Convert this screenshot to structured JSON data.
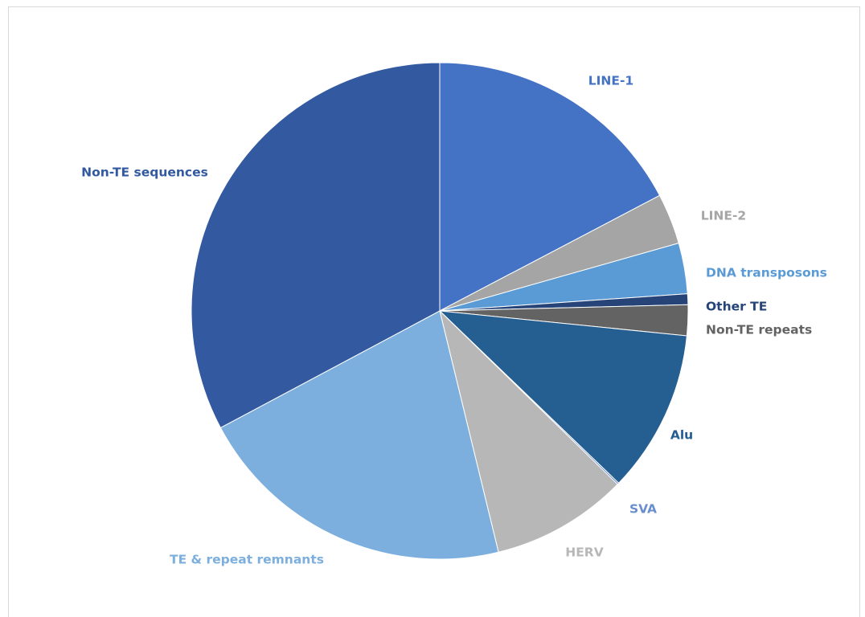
{
  "chart_data": {
    "type": "pie",
    "title": "",
    "legend": "none",
    "slices": [
      {
        "label": "LINE-1",
        "value": 17.3,
        "color": "#4472C4",
        "label_color": "#4472C4"
      },
      {
        "label": "LINE-2",
        "value": 3.3,
        "color": "#A5A5A5",
        "label_color": "#A5A5A5"
      },
      {
        "label": "DNA transposons",
        "value": 3.3,
        "color": "#5B9BD5",
        "label_color": "#5B9BD5"
      },
      {
        "label": "Other TE",
        "value": 0.7,
        "color": "#264478",
        "label_color": "#264478"
      },
      {
        "label": "Non-TE repeats",
        "value": 2.0,
        "color": "#636363",
        "label_color": "#636363"
      },
      {
        "label": "Alu",
        "value": 10.6,
        "color": "#255E91",
        "label_color": "#255E91"
      },
      {
        "label": "SVA",
        "value": 0.1,
        "color": "#4472C4",
        "label_color": "#698ED0"
      },
      {
        "label": "HERV",
        "value": 8.9,
        "color": "#B7B7B7",
        "label_color": "#B7B7B7"
      },
      {
        "label": "TE & repeat remnants",
        "value": 21.0,
        "color": "#7CAFDD",
        "label_color": "#7CAFDD"
      },
      {
        "label": "Non-TE sequences",
        "value": 32.8,
        "color": "#335AA1",
        "label_color": "#335AA1"
      }
    ]
  }
}
